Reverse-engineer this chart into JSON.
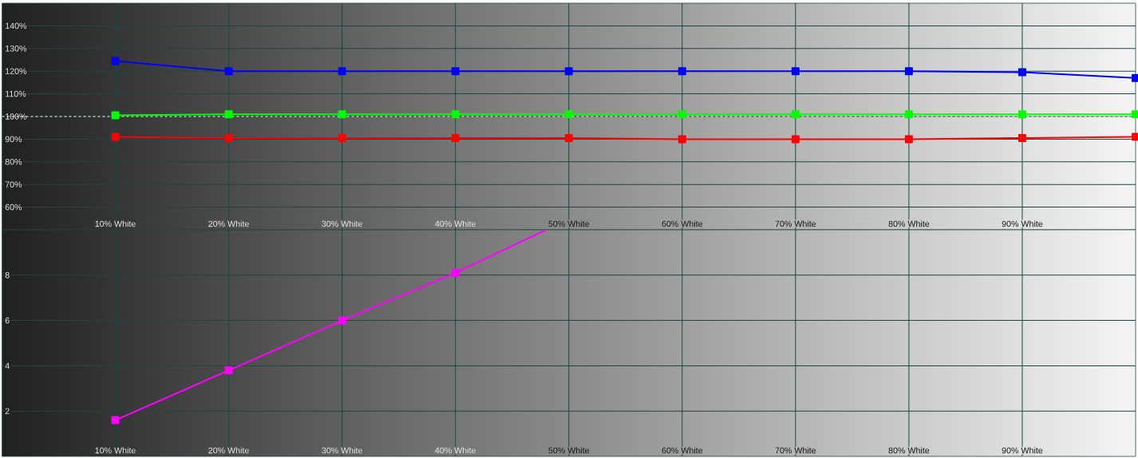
{
  "chart_data": [
    {
      "type": "line",
      "x": [
        10,
        20,
        30,
        40,
        50,
        60,
        70,
        80,
        90,
        100
      ],
      "series": [
        {
          "color": "#ff0000",
          "values": [
            91,
            90.5,
            90.5,
            90.5,
            90.5,
            90,
            90,
            90,
            90.5,
            91
          ]
        },
        {
          "color": "#00ff00",
          "values": [
            100.5,
            101,
            101,
            101,
            101,
            101,
            101,
            101,
            101,
            101
          ]
        },
        {
          "color": "#0000ff",
          "values": [
            124.5,
            120,
            120,
            120,
            120,
            120,
            120,
            120,
            119.5,
            117
          ]
        }
      ],
      "xlim": [
        0,
        100
      ],
      "xticks": [
        {
          "value": 10,
          "label": "10% White"
        },
        {
          "value": 20,
          "label": "20% White"
        },
        {
          "value": 30,
          "label": "30% White"
        },
        {
          "value": 40,
          "label": "40% White"
        },
        {
          "value": 50,
          "label": "50% White"
        },
        {
          "value": 60,
          "label": "60% White"
        },
        {
          "value": 70,
          "label": "70% White"
        },
        {
          "value": 80,
          "label": "80% White"
        },
        {
          "value": 90,
          "label": "90% White"
        }
      ],
      "ylim": [
        50,
        150
      ],
      "yticks": [
        {
          "value": 60,
          "label": "60%"
        },
        {
          "value": 70,
          "label": "70%"
        },
        {
          "value": 80,
          "label": "80%"
        },
        {
          "value": 90,
          "label": "90%"
        },
        {
          "value": 100,
          "label": "100%"
        },
        {
          "value": 110,
          "label": "110%"
        },
        {
          "value": 120,
          "label": "120%"
        },
        {
          "value": 130,
          "label": "130%"
        },
        {
          "value": 140,
          "label": "140%"
        }
      ],
      "grid": true,
      "marker": "square",
      "ref_lines": [
        {
          "axis": "y",
          "value": 100,
          "line_style": "dashed",
          "color": "#ffffff"
        }
      ]
    },
    {
      "type": "line",
      "x": [
        10,
        20,
        30,
        40,
        48
      ],
      "series": [
        {
          "color": "#ff00ff",
          "values": [
            1.6,
            3.8,
            6.0,
            8.1,
            10
          ]
        }
      ],
      "xlim": [
        0,
        100
      ],
      "xticks": [
        {
          "value": 10,
          "label": "10% White"
        },
        {
          "value": 20,
          "label": "20% White"
        },
        {
          "value": 30,
          "label": "30% White"
        },
        {
          "value": 40,
          "label": "40% White"
        },
        {
          "value": 50,
          "label": "50% White"
        },
        {
          "value": 60,
          "label": "60% White"
        },
        {
          "value": 70,
          "label": "70% White"
        },
        {
          "value": 80,
          "label": "80% White"
        },
        {
          "value": 90,
          "label": "90% White"
        }
      ],
      "ylim": [
        0,
        10
      ],
      "yticks": [
        2,
        4,
        6,
        8
      ],
      "grid": true,
      "marker": "square"
    }
  ]
}
